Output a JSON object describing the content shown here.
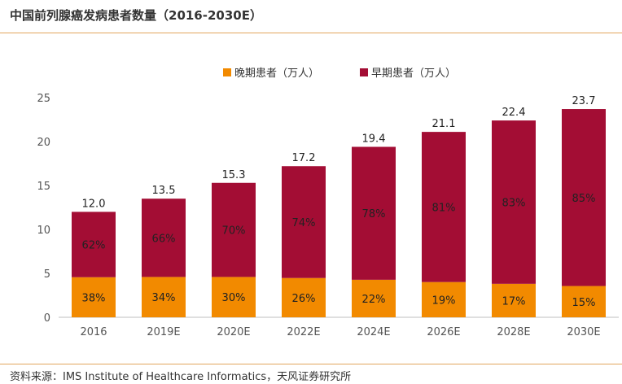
{
  "title": "中国前列腺癌发病患者数量（2016-2030E）",
  "source": "资料来源：IMS Institute of Healthcare Informatics，天风证券研究所",
  "colors": {
    "late": "#f28a00",
    "early": "#a30d34",
    "rule": "#e2a65d"
  },
  "chart_data": {
    "type": "bar",
    "stacked": true,
    "categories": [
      "2016",
      "2019E",
      "2020E",
      "2022E",
      "2024E",
      "2026E",
      "2028E",
      "2030E"
    ],
    "totals": [
      "12.0",
      "13.5",
      "15.3",
      "17.2",
      "19.4",
      "21.1",
      "22.4",
      "23.7"
    ],
    "series": [
      {
        "name": "晚期患者（万人）",
        "values": [
          4.56,
          4.59,
          4.59,
          4.47,
          4.27,
          4.01,
          3.81,
          3.56
        ],
        "labels": [
          "38%",
          "34%",
          "30%",
          "26%",
          "22%",
          "19%",
          "17%",
          "15%"
        ]
      },
      {
        "name": "早期患者（万人）",
        "values": [
          7.44,
          8.91,
          10.71,
          12.73,
          15.13,
          17.09,
          18.59,
          20.14
        ],
        "labels": [
          "62%",
          "66%",
          "70%",
          "74%",
          "78%",
          "81%",
          "83%",
          "85%"
        ]
      }
    ],
    "yticks": [
      "0",
      "5",
      "10",
      "15",
      "20",
      "25"
    ],
    "ylim": [
      0,
      25
    ],
    "legend_position": "top-center",
    "grid": false
  }
}
